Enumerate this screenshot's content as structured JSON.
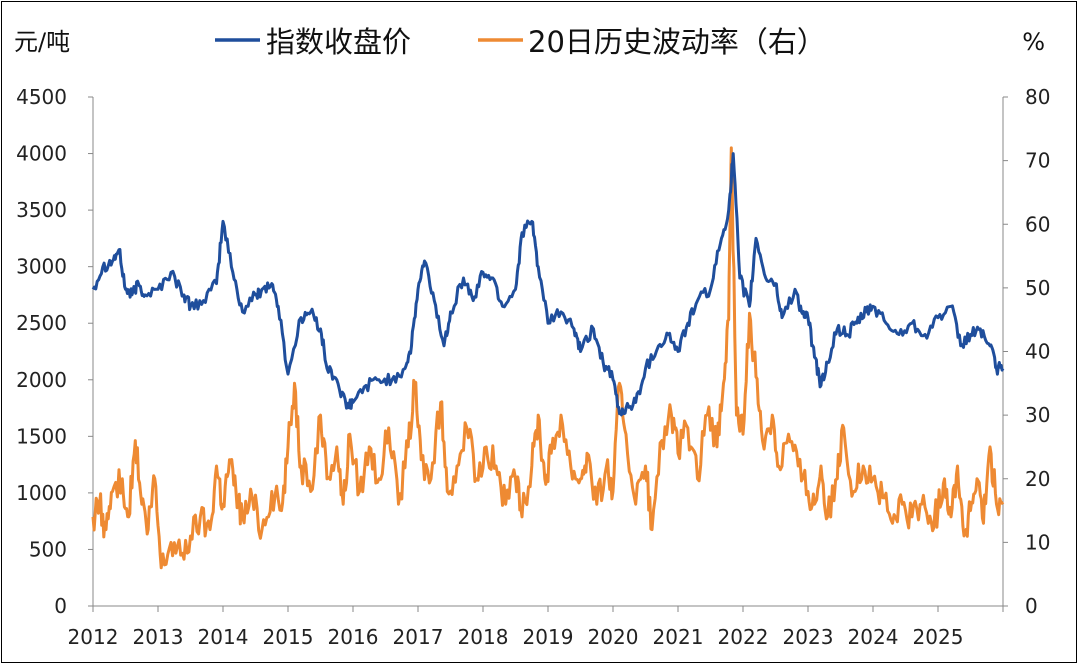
{
  "chart_data": {
    "type": "line",
    "title": "",
    "left_axis_unit": "元/吨",
    "right_axis_unit": "%",
    "left_ylim": [
      0,
      4500
    ],
    "left_yticks": [
      "0",
      "500",
      "1000",
      "1500",
      "2000",
      "2500",
      "3000",
      "3500",
      "4000",
      "4500"
    ],
    "right_ylim": [
      0,
      80
    ],
    "right_yticks": [
      "0",
      "10",
      "20",
      "30",
      "40",
      "50",
      "60",
      "70",
      "80"
    ],
    "xlim": [
      2012,
      2026
    ],
    "xticks": [
      "2012",
      "2013",
      "2014",
      "2015",
      "2016",
      "2017",
      "2018",
      "2019",
      "2020",
      "2021",
      "2022",
      "2023",
      "2024",
      "2025"
    ],
    "series": [
      {
        "name": "指数收盘价",
        "axis": "left",
        "color": "#1f4e9c",
        "x": [
          2012.0,
          2012.15,
          2012.3,
          2012.4,
          2012.5,
          2012.6,
          2012.7,
          2012.8,
          2013.0,
          2013.2,
          2013.4,
          2013.5,
          2013.7,
          2013.9,
          2014.0,
          2014.15,
          2014.3,
          2014.5,
          2014.6,
          2014.75,
          2014.85,
          2015.0,
          2015.2,
          2015.35,
          2015.5,
          2015.6,
          2015.75,
          2015.9,
          2016.0,
          2016.2,
          2016.4,
          2016.6,
          2016.8,
          2016.9,
          2017.0,
          2017.1,
          2017.25,
          2017.4,
          2017.5,
          2017.7,
          2017.85,
          2018.0,
          2018.15,
          2018.3,
          2018.5,
          2018.6,
          2018.75,
          2018.85,
          2019.0,
          2019.2,
          2019.4,
          2019.5,
          2019.7,
          2019.85,
          2020.0,
          2020.1,
          2020.2,
          2020.35,
          2020.5,
          2020.7,
          2020.85,
          2021.0,
          2021.15,
          2021.3,
          2021.5,
          2021.65,
          2021.78,
          2021.85,
          2021.95,
          2022.1,
          2022.2,
          2022.35,
          2022.5,
          2022.6,
          2022.8,
          2022.9,
          2023.0,
          2023.1,
          2023.2,
          2023.3,
          2023.45,
          2023.6,
          2023.75,
          2023.9,
          2024.0,
          2024.2,
          2024.4,
          2024.6,
          2024.8,
          2025.0,
          2025.2,
          2025.35,
          2025.5,
          2025.65,
          2025.8,
          2025.9,
          2026.0
        ],
        "values": [
          2800,
          3000,
          3050,
          3150,
          2800,
          2750,
          2850,
          2750,
          2800,
          2950,
          2750,
          2650,
          2700,
          2850,
          3400,
          2950,
          2600,
          2750,
          2800,
          2850,
          2650,
          2050,
          2550,
          2600,
          2450,
          2100,
          2000,
          1750,
          1800,
          1950,
          2000,
          2000,
          2100,
          2300,
          2800,
          3050,
          2700,
          2300,
          2600,
          2900,
          2700,
          2950,
          2900,
          2650,
          2800,
          3300,
          3400,
          3000,
          2500,
          2600,
          2450,
          2250,
          2450,
          2150,
          2000,
          1700,
          1750,
          1800,
          2100,
          2300,
          2400,
          2250,
          2500,
          2700,
          2800,
          3200,
          3500,
          4000,
          2900,
          2650,
          3250,
          2900,
          2850,
          2550,
          2800,
          2600,
          2550,
          2200,
          1950,
          2150,
          2450,
          2400,
          2500,
          2600,
          2650,
          2500,
          2400,
          2500,
          2400,
          2550,
          2650,
          2300,
          2400,
          2450,
          2300,
          2100,
          2100
        ]
      },
      {
        "name": "20日历史波动率（右）",
        "axis": "right",
        "color": "#ee8a33",
        "x": [
          2012.0,
          2012.1,
          2012.2,
          2012.3,
          2012.45,
          2012.55,
          2012.65,
          2012.75,
          2012.85,
          2012.95,
          2013.05,
          2013.2,
          2013.35,
          2013.5,
          2013.65,
          2013.8,
          2013.9,
          2014.0,
          2014.1,
          2014.2,
          2014.3,
          2014.45,
          2014.6,
          2014.75,
          2014.9,
          2015.0,
          2015.1,
          2015.2,
          2015.35,
          2015.5,
          2015.6,
          2015.75,
          2015.85,
          2015.95,
          2016.1,
          2016.25,
          2016.4,
          2016.55,
          2016.7,
          2016.85,
          2016.95,
          2017.05,
          2017.2,
          2017.35,
          2017.45,
          2017.6,
          2017.75,
          2017.9,
          2018.05,
          2018.2,
          2018.35,
          2018.5,
          2018.6,
          2018.75,
          2018.85,
          2018.95,
          2019.05,
          2019.2,
          2019.35,
          2019.5,
          2019.6,
          2019.75,
          2019.9,
          2020.0,
          2020.1,
          2020.2,
          2020.35,
          2020.5,
          2020.6,
          2020.75,
          2020.9,
          2021.0,
          2021.15,
          2021.3,
          2021.45,
          2021.6,
          2021.7,
          2021.78,
          2021.82,
          2021.9,
          2022.0,
          2022.1,
          2022.2,
          2022.3,
          2022.45,
          2022.55,
          2022.7,
          2022.85,
          2023.0,
          2023.1,
          2023.2,
          2023.3,
          2023.45,
          2023.55,
          2023.7,
          2023.85,
          2024.0,
          2024.15,
          2024.3,
          2024.45,
          2024.6,
          2024.75,
          2024.9,
          2025.0,
          2025.1,
          2025.2,
          2025.3,
          2025.4,
          2025.5,
          2025.6,
          2025.7,
          2025.8,
          2025.9,
          2026.0
        ],
        "values": [
          14,
          16,
          12,
          18,
          20,
          14,
          26,
          16,
          12,
          20,
          6,
          10,
          8,
          11,
          14,
          12,
          22,
          16,
          23,
          18,
          14,
          17,
          12,
          18,
          15,
          25,
          35,
          22,
          18,
          30,
          20,
          25,
          16,
          27,
          18,
          25,
          20,
          28,
          16,
          25,
          35,
          23,
          20,
          32,
          18,
          22,
          28,
          20,
          25,
          22,
          16,
          20,
          14,
          22,
          30,
          20,
          24,
          30,
          22,
          20,
          24,
          16,
          22,
          18,
          35,
          27,
          16,
          22,
          12,
          26,
          30,
          24,
          28,
          20,
          30,
          25,
          35,
          45,
          72,
          30,
          27,
          46,
          36,
          26,
          30,
          22,
          27,
          22,
          18,
          16,
          22,
          14,
          20,
          28,
          18,
          22,
          20,
          17,
          13,
          16,
          14,
          16,
          13,
          15,
          20,
          14,
          22,
          11,
          15,
          20,
          13,
          25,
          16,
          16
        ]
      }
    ]
  }
}
